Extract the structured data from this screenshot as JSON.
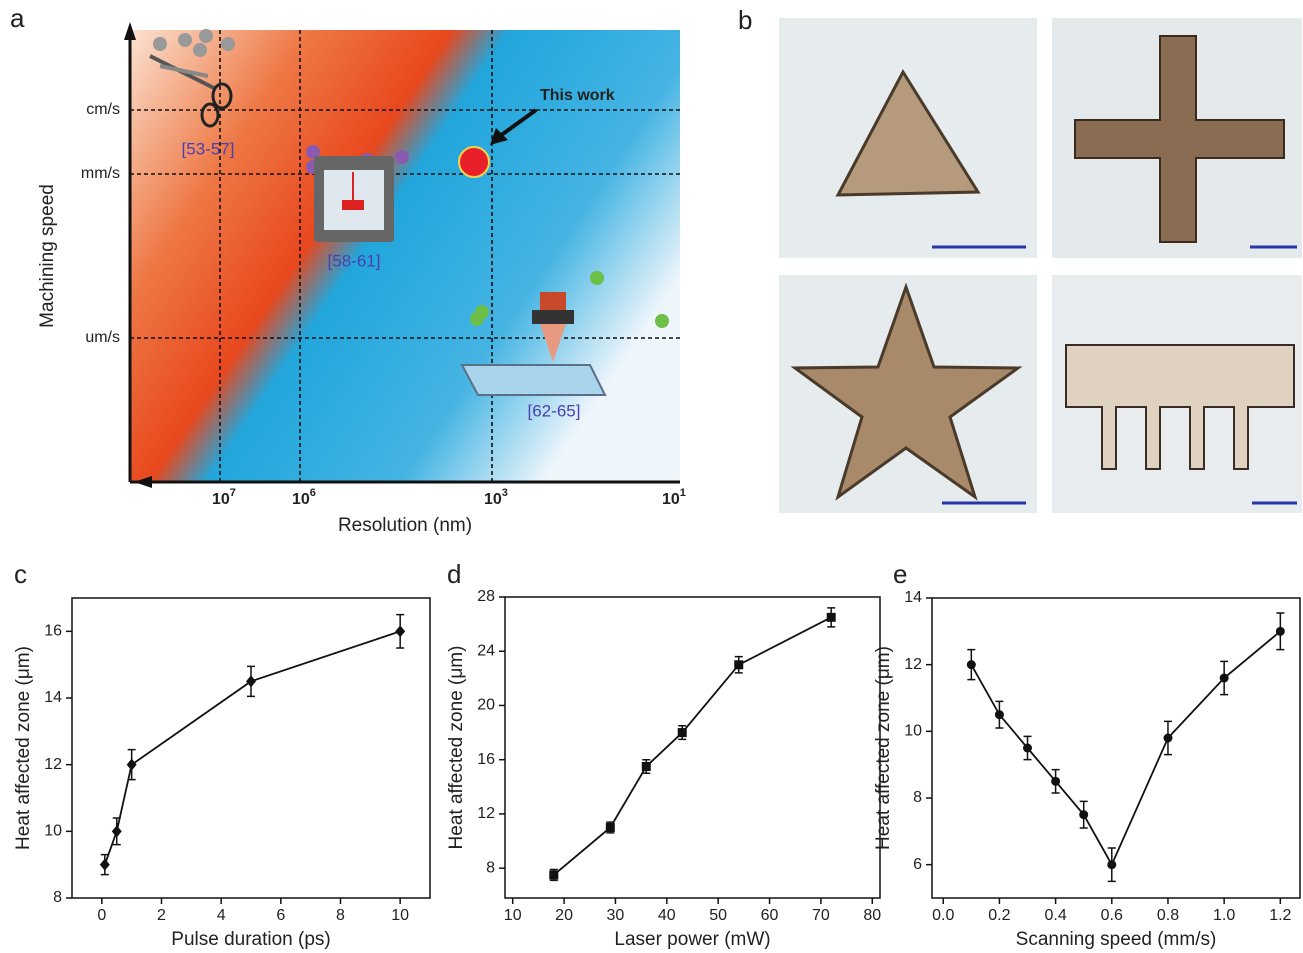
{
  "panel_a": {
    "panel_label": "a",
    "ylabel": "Machining speed",
    "xlabel": "Resolution (nm)",
    "yticks": [
      "cm/s",
      "mm/s",
      "um/s"
    ],
    "xticks": [
      {
        "base": "10",
        "exponent": "7"
      },
      {
        "base": "10",
        "exponent": "6"
      },
      {
        "base": "10",
        "exponent": "3"
      },
      {
        "base": "10",
        "exponent": "1"
      }
    ],
    "annotation": "This work",
    "references": [
      "[53-57]",
      "[58-61]",
      "[62-65]"
    ]
  },
  "panel_b": {
    "panel_label": "b"
  },
  "chart_data": [
    {
      "type": "line",
      "panel_label": "c",
      "xlabel": "Pulse duration (ps)",
      "ylabel": "Heat affected zone (μm)",
      "x": [
        0.1,
        0.5,
        1,
        5,
        10
      ],
      "values": [
        9,
        10,
        12,
        14.5,
        16
      ],
      "errors": [
        0.3,
        0.4,
        0.45,
        0.45,
        0.5
      ],
      "color": "#111111",
      "marker": "diamond",
      "xlim": [
        -1,
        11
      ],
      "xticks": [
        0,
        2,
        4,
        6,
        8,
        10
      ],
      "ylim": [
        8,
        17
      ],
      "yticks": [
        8,
        10,
        12,
        14,
        16
      ]
    },
    {
      "type": "line",
      "panel_label": "d",
      "xlabel": "Laser power (mW)",
      "ylabel": "Heat affected zone (μm)",
      "x": [
        18,
        29,
        36,
        43,
        54,
        72
      ],
      "values": [
        7.5,
        11,
        15.5,
        18,
        23,
        26.5
      ],
      "errors": [
        0.4,
        0.4,
        0.5,
        0.5,
        0.6,
        0.7
      ],
      "color": "#111111",
      "marker": "square",
      "xlim": [
        8.5,
        81.5
      ],
      "xticks": [
        10,
        20,
        30,
        40,
        50,
        60,
        70,
        80
      ],
      "ylim": [
        5.8,
        28
      ],
      "yticks": [
        8,
        12,
        16,
        20,
        24,
        28
      ]
    },
    {
      "type": "line",
      "panel_label": "e",
      "xlabel": "Scanning speed (mm/s)",
      "ylabel": "Heat affected zone (μm)",
      "x": [
        0.1,
        0.2,
        0.3,
        0.4,
        0.5,
        0.6,
        0.8,
        1.0,
        1.2
      ],
      "values": [
        12,
        10.5,
        9.5,
        8.5,
        7.5,
        6,
        9.8,
        11.6,
        13
      ],
      "errors": [
        0.45,
        0.4,
        0.35,
        0.35,
        0.4,
        0.5,
        0.5,
        0.5,
        0.55
      ],
      "color": "#111111",
      "marker": "circle",
      "xlim": [
        -0.04,
        1.27
      ],
      "xticks": [
        {
          "value": 0,
          "label": "0.0"
        },
        0.2,
        0.4,
        0.6,
        0.8,
        {
          "value": 1,
          "label": "1.0"
        },
        1.2
      ],
      "ylim": [
        5,
        14
      ],
      "yticks": [
        6,
        8,
        10,
        12,
        14
      ]
    }
  ]
}
